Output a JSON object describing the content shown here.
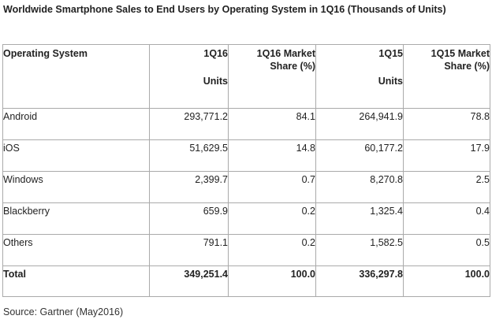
{
  "title": "Worldwide Smartphone Sales to End Users by Operating System in 1Q16 (Thousands of Units)",
  "table": {
    "headers": [
      {
        "line1": "Operating System",
        "line2": ""
      },
      {
        "line1": "1Q16",
        "line2": "Units"
      },
      {
        "line1": "1Q16 Market",
        "line2": "Share (%)"
      },
      {
        "line1": "1Q15",
        "line2": "Units"
      },
      {
        "line1": "1Q15 Market",
        "line2": "Share (%)"
      }
    ],
    "rows": [
      [
        "Android",
        "293,771.2",
        "84.1",
        "264,941.9",
        "78.8"
      ],
      [
        "iOS",
        "51,629.5",
        "14.8",
        "60,177.2",
        "17.9"
      ],
      [
        "Windows",
        "2,399.7",
        "0.7",
        "8,270.8",
        "2.5"
      ],
      [
        "Blackberry",
        "659.9",
        "0.2",
        "1,325.4",
        "0.4"
      ],
      [
        "Others",
        "791.1",
        "0.2",
        "1,582.5",
        "0.5"
      ]
    ],
    "total": [
      "Total",
      "349,251.4",
      "100.0",
      "336,297.8",
      "100.0"
    ]
  },
  "source": "Source: Gartner (May2016)"
}
